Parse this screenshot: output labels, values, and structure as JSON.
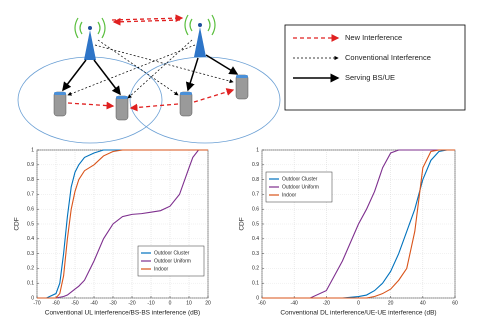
{
  "diagram": {
    "legend": [
      "New Interference",
      "Conventional Interference",
      "Serving BS/UE"
    ]
  },
  "chart_data": [
    {
      "type": "line",
      "xlabel": "Conventional UL interference/BS-BS interference (dB)",
      "ylabel": "CDF",
      "x": [
        -70,
        -65,
        -60,
        -58,
        -56,
        -54,
        -52,
        -50,
        -48,
        -45,
        -40,
        -35,
        -30,
        -25,
        -20,
        -15,
        -10,
        -5,
        0,
        5,
        10,
        12,
        15,
        20
      ],
      "series": [
        {
          "name": "Outdoor Cluster",
          "color": "#0072bd",
          "values": [
            0,
            0,
            0.03,
            0.1,
            0.3,
            0.55,
            0.75,
            0.85,
            0.9,
            0.95,
            0.98,
            1,
            1,
            1,
            1,
            1,
            1,
            1,
            1,
            1,
            1,
            1,
            1,
            1
          ]
        },
        {
          "name": "Outdoor Uniform",
          "color": "#7e2f8e",
          "values": [
            0,
            0,
            0,
            0.005,
            0.01,
            0.02,
            0.04,
            0.06,
            0.08,
            0.12,
            0.25,
            0.4,
            0.5,
            0.55,
            0.565,
            0.57,
            0.58,
            0.59,
            0.62,
            0.7,
            0.88,
            0.95,
            1,
            1
          ]
        },
        {
          "name": "Indoor",
          "color": "#d95319",
          "values": [
            0,
            0,
            0,
            0.03,
            0.15,
            0.4,
            0.6,
            0.72,
            0.8,
            0.86,
            0.9,
            0.96,
            0.99,
            1,
            1,
            1,
            1,
            1,
            1,
            1,
            1,
            1,
            1,
            1
          ]
        }
      ],
      "xlim": [
        -70,
        20
      ],
      "xticks": [
        -70,
        -60,
        -50,
        -40,
        -30,
        -20,
        -10,
        0,
        10,
        20
      ],
      "ylim": [
        0,
        1
      ],
      "yticks": [
        0,
        0.1,
        0.2,
        0.3,
        0.4,
        0.5,
        0.6,
        0.7,
        0.8,
        0.9,
        1
      ],
      "grid": true,
      "legend": "lower right"
    },
    {
      "type": "line",
      "xlabel": "Conventional DL interference/UE-UE interference (dB)",
      "ylabel": "CDF",
      "x": [
        -60,
        -40,
        -30,
        -20,
        -10,
        0,
        5,
        10,
        15,
        20,
        25,
        30,
        35,
        40,
        45,
        50,
        55,
        60
      ],
      "series": [
        {
          "name": "Outdoor Cluster",
          "color": "#0072bd",
          "values": [
            0,
            0,
            0,
            0,
            0,
            0.01,
            0.02,
            0.05,
            0.1,
            0.18,
            0.3,
            0.45,
            0.6,
            0.8,
            0.93,
            0.99,
            1,
            1
          ]
        },
        {
          "name": "Outdoor Uniform",
          "color": "#7e2f8e",
          "values": [
            0,
            0,
            0,
            0.05,
            0.25,
            0.5,
            0.6,
            0.72,
            0.88,
            0.98,
            1,
            1,
            1,
            1,
            1,
            1,
            1,
            1
          ]
        },
        {
          "name": "Indoor",
          "color": "#d95319",
          "values": [
            0,
            0,
            0,
            0,
            0,
            0,
            0,
            0.01,
            0.03,
            0.06,
            0.12,
            0.2,
            0.45,
            0.88,
            0.99,
            1,
            1,
            1
          ]
        }
      ],
      "xlim": [
        -60,
        60
      ],
      "xticks": [
        -60,
        -40,
        -20,
        0,
        20,
        40,
        60
      ],
      "ylim": [
        0,
        1
      ],
      "yticks": [
        0,
        0.1,
        0.2,
        0.3,
        0.4,
        0.5,
        0.6,
        0.7,
        0.8,
        0.9,
        1
      ],
      "grid": true,
      "legend": "upper left"
    }
  ]
}
